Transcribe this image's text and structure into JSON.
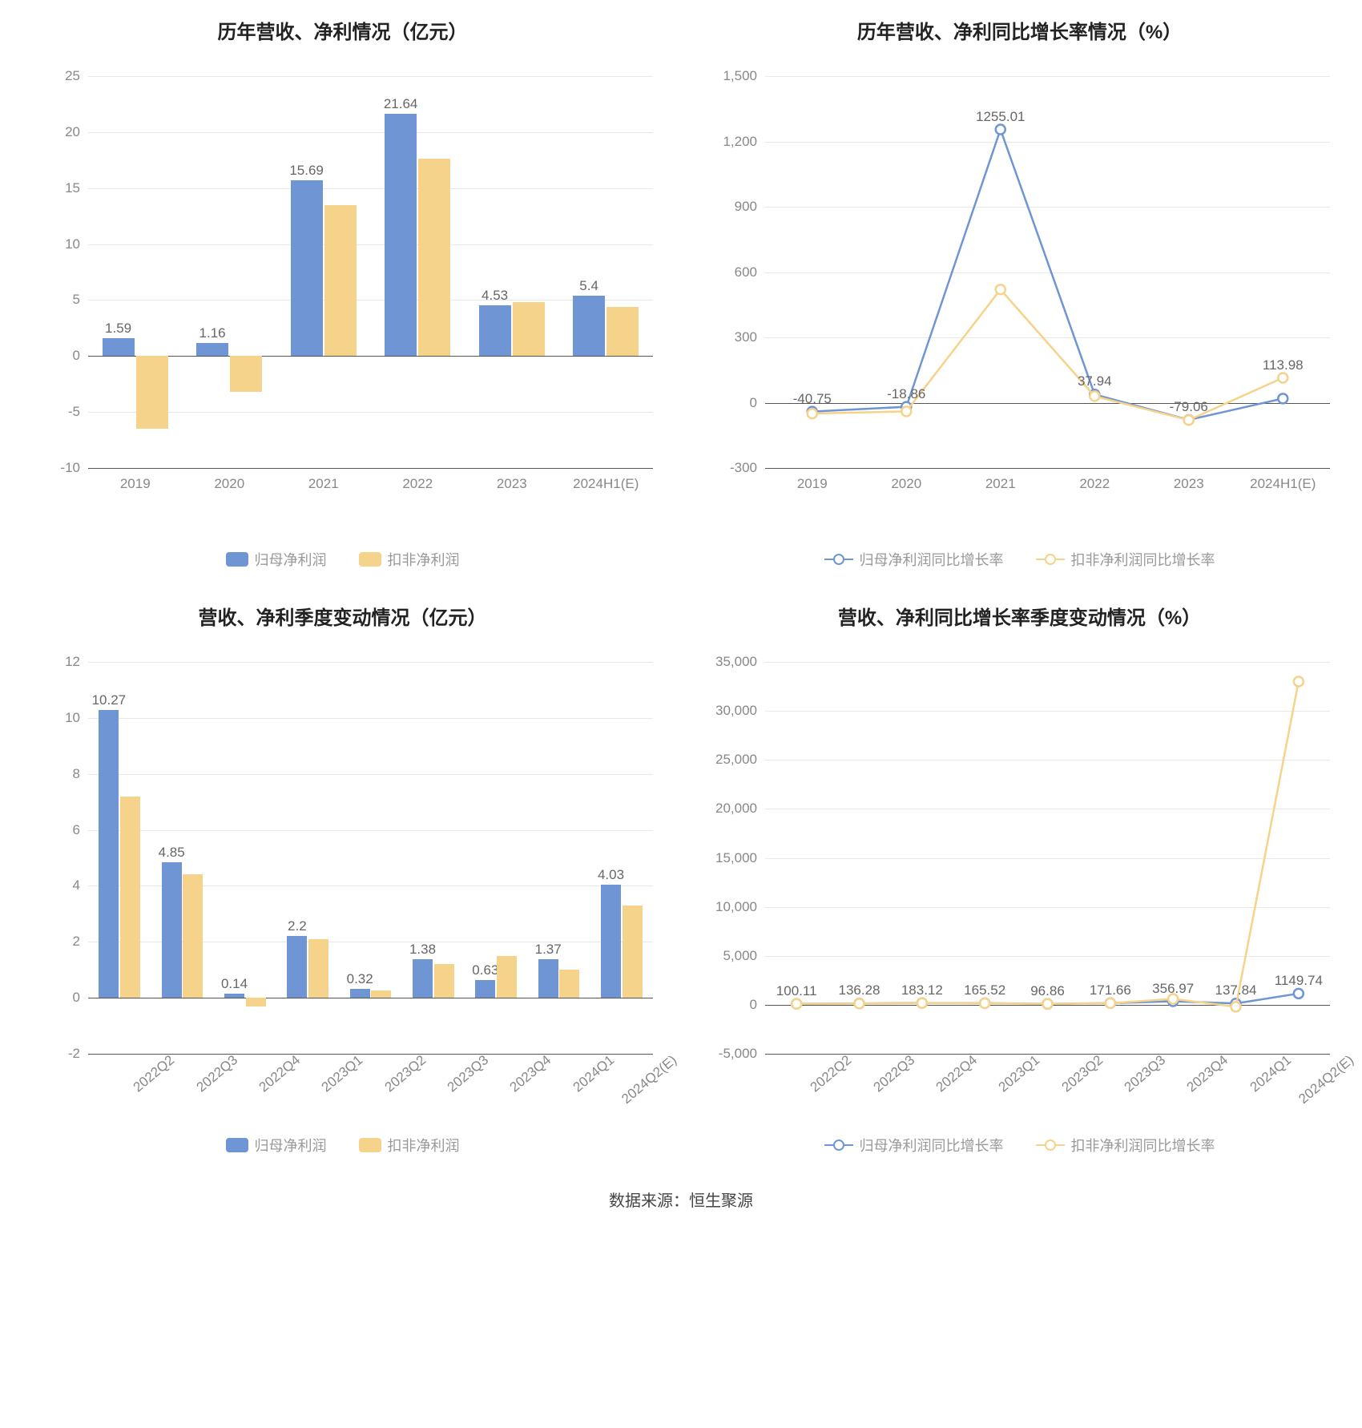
{
  "colors": {
    "blue": "#6f95d4",
    "yellow": "#f5d38a",
    "blue_line": "#6f95d4",
    "yellow_line": "#f5d38a",
    "grid": "#e8e8e8",
    "axis": "#555555",
    "tick_text": "#888888",
    "title_text": "#222222",
    "legend_text": "#999999",
    "label_text": "#666666",
    "bg": "#ffffff"
  },
  "source_label": "数据来源：恒生聚源",
  "charts": {
    "tl": {
      "type": "bar",
      "title": "历年营收、净利情况（亿元）",
      "categories": [
        "2019",
        "2020",
        "2021",
        "2022",
        "2023",
        "2024H1(E)"
      ],
      "series": [
        {
          "name": "归母净利润",
          "color": "#6f95d4",
          "values": [
            1.59,
            1.16,
            15.69,
            21.64,
            4.53,
            5.4
          ],
          "show_labels": [
            1.59,
            1.16,
            15.69,
            21.64,
            4.53,
            5.4
          ]
        },
        {
          "name": "扣非净利润",
          "color": "#f5d38a",
          "values": [
            -6.5,
            -3.2,
            13.5,
            17.6,
            4.8,
            4.4
          ],
          "show_labels": [
            null,
            null,
            null,
            null,
            null,
            null
          ]
        }
      ],
      "ylim": [
        -10,
        25
      ],
      "ytick_step": 5,
      "title_fontsize": 24,
      "label_fontsize": 17,
      "bar_width": 0.34,
      "bar_gap": 0.02,
      "legend": [
        {
          "label": "归母净利润",
          "type": "swatch",
          "color": "#6f95d4"
        },
        {
          "label": "扣非净利润",
          "type": "swatch",
          "color": "#f5d38a"
        }
      ],
      "x_rotate": false
    },
    "tr": {
      "type": "line",
      "title": "历年营收、净利同比增长率情况（%）",
      "categories": [
        "2019",
        "2020",
        "2021",
        "2022",
        "2023",
        "2024H1(E)"
      ],
      "series": [
        {
          "name": "归母净利润同比增长率",
          "color": "#6f95d4",
          "values": [
            -40.75,
            -18.86,
            1255.01,
            37.94,
            -79.06,
            19.0
          ],
          "show_labels": [
            -40.75,
            -18.86,
            1255.01,
            37.94,
            -79.06,
            null
          ]
        },
        {
          "name": "扣非净利润同比增长率",
          "color": "#f5d38a",
          "values": [
            -50,
            -40,
            520,
            30,
            -80,
            113.98
          ],
          "show_labels": [
            null,
            null,
            null,
            null,
            null,
            113.98
          ]
        }
      ],
      "ylim": [
        -300,
        1500
      ],
      "ytick_step": 300,
      "title_fontsize": 24,
      "label_fontsize": 17,
      "marker_size": 6,
      "legend": [
        {
          "label": "归母净利润同比增长率",
          "type": "line",
          "color": "#6f95d4"
        },
        {
          "label": "扣非净利润同比增长率",
          "type": "line",
          "color": "#f5d38a"
        }
      ],
      "x_rotate": false
    },
    "bl": {
      "type": "bar",
      "title": "营收、净利季度变动情况（亿元）",
      "categories": [
        "2022Q2",
        "2022Q3",
        "2022Q4",
        "2023Q1",
        "2023Q2",
        "2023Q3",
        "2023Q4",
        "2024Q1",
        "2024Q2(E)"
      ],
      "series": [
        {
          "name": "归母净利润",
          "color": "#6f95d4",
          "values": [
            10.27,
            4.85,
            0.14,
            2.2,
            0.32,
            1.38,
            0.63,
            1.37,
            4.03
          ],
          "show_labels": [
            10.27,
            4.85,
            0.14,
            2.2,
            0.32,
            1.38,
            0.63,
            1.37,
            4.03
          ]
        },
        {
          "name": "扣非净利润",
          "color": "#f5d38a",
          "values": [
            7.2,
            4.4,
            -0.3,
            2.1,
            0.25,
            1.2,
            1.5,
            1.0,
            3.3
          ],
          "show_labels": [
            null,
            null,
            null,
            null,
            null,
            null,
            null,
            null,
            null
          ]
        }
      ],
      "ylim": [
        -2,
        12
      ],
      "ytick_step": 2,
      "title_fontsize": 24,
      "label_fontsize": 17,
      "bar_width": 0.32,
      "bar_gap": 0.02,
      "legend": [
        {
          "label": "归母净利润",
          "type": "swatch",
          "color": "#6f95d4"
        },
        {
          "label": "扣非净利润",
          "type": "swatch",
          "color": "#f5d38a"
        }
      ],
      "x_rotate": true
    },
    "br": {
      "type": "line",
      "title": "营收、净利同比增长率季度变动情况（%）",
      "categories": [
        "2022Q2",
        "2022Q3",
        "2022Q4",
        "2023Q1",
        "2023Q2",
        "2023Q3",
        "2023Q4",
        "2024Q1",
        "2024Q2(E)"
      ],
      "series": [
        {
          "name": "归母净利润同比增长率",
          "color": "#6f95d4",
          "values": [
            100.11,
            136.28,
            183.12,
            165.52,
            96.86,
            171.66,
            356.97,
            137.84,
            1149.74
          ],
          "show_labels": [
            100.11,
            136.28,
            183.12,
            165.52,
            96.86,
            171.66,
            356.97,
            137.84,
            1149.74
          ]
        },
        {
          "name": "扣非净利润同比增长率",
          "color": "#f5d38a",
          "values": [
            90,
            120,
            170,
            150,
            90,
            160,
            600,
            -200,
            33000
          ],
          "show_labels": [
            null,
            null,
            null,
            null,
            null,
            null,
            null,
            null,
            null
          ]
        }
      ],
      "ylim": [
        -5000,
        35000
      ],
      "ytick_step": 5000,
      "title_fontsize": 24,
      "label_fontsize": 17,
      "marker_size": 6,
      "legend": [
        {
          "label": "归母净利润同比增长率",
          "type": "line",
          "color": "#6f95d4"
        },
        {
          "label": "扣非净利润同比增长率",
          "type": "line",
          "color": "#f5d38a"
        }
      ],
      "x_rotate": true
    }
  }
}
